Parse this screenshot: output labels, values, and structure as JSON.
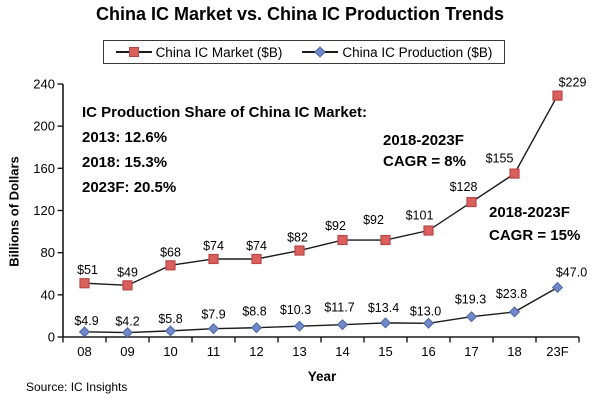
{
  "title": "China IC Market vs. China IC Production Trends",
  "legend": {
    "items": [
      {
        "label": "China IC Market ($B)",
        "marker": "square"
      },
      {
        "label": "China IC Production ($B)",
        "marker": "diamond"
      }
    ]
  },
  "chart_data": {
    "type": "line",
    "categories": [
      "08",
      "09",
      "10",
      "11",
      "12",
      "13",
      "14",
      "15",
      "16",
      "17",
      "18",
      "23F"
    ],
    "series": [
      {
        "name": "China IC Market ($B)",
        "values": [
          51,
          49,
          68,
          74,
          74,
          82,
          92,
          92,
          101,
          128,
          155,
          229
        ],
        "labels": [
          "$51",
          "$49",
          "$68",
          "$74",
          "$74",
          "$82",
          "$92",
          "$92",
          "$101",
          "$128",
          "$155",
          "$229"
        ],
        "marker": "square",
        "marker_color": "#d9605c",
        "marker_border": "#b9474a",
        "line_color": "#1a1a1a",
        "label_dx": [
          3,
          0,
          0,
          0,
          0,
          -2,
          -7,
          -12,
          -9,
          -8,
          -15,
          15
        ],
        "label_dy": [
          -9,
          -9,
          -9,
          -9,
          -9,
          -9,
          -10,
          -16,
          -11,
          -11,
          -11,
          -9
        ]
      },
      {
        "name": "China IC Production ($B)",
        "values": [
          4.9,
          4.2,
          5.8,
          7.9,
          8.8,
          10.3,
          11.7,
          13.4,
          13.0,
          19.3,
          23.8,
          47.0
        ],
        "labels": [
          "$4.9",
          "$4.2",
          "$5.8",
          "$7.9",
          "$8.8",
          "$10.3",
          "$11.7",
          "$13.4",
          "$13.0",
          "$19.3",
          "$23.8",
          "$47.0"
        ],
        "marker": "diamond",
        "marker_color": "#7289c9",
        "marker_border": "#4e68a8",
        "line_color": "#1a1a1a",
        "label_dx": [
          2,
          0,
          0,
          0,
          -2,
          -4,
          -3,
          -2,
          -3,
          -1,
          -3,
          14
        ],
        "label_dy": [
          -7,
          -7,
          -8,
          -10,
          -12,
          -12,
          -13,
          -11,
          -8,
          -13,
          -14,
          -11
        ]
      }
    ],
    "title": "China IC Market vs. China IC Production Trends",
    "xlabel": "Year",
    "ylabel": "Billions of Dollars",
    "ylim": [
      0,
      240
    ],
    "yticks": [
      0,
      40,
      80,
      120,
      160,
      200,
      240
    ],
    "grid": false,
    "legend_position": "top-center",
    "axis_color": "#1a1a1a"
  },
  "annotations": {
    "share": {
      "title": "IC Production Share of China IC Market:",
      "lines": [
        "2013: 12.6%",
        "2018: 15.3%",
        "2023F: 20.5%"
      ]
    },
    "cagr_market": {
      "line1": "2018-2023F",
      "line2": "CAGR = 8%"
    },
    "cagr_production": {
      "line1": "2018-2023F",
      "line2": "CAGR = 15%"
    }
  },
  "source": "Source: IC Insights"
}
